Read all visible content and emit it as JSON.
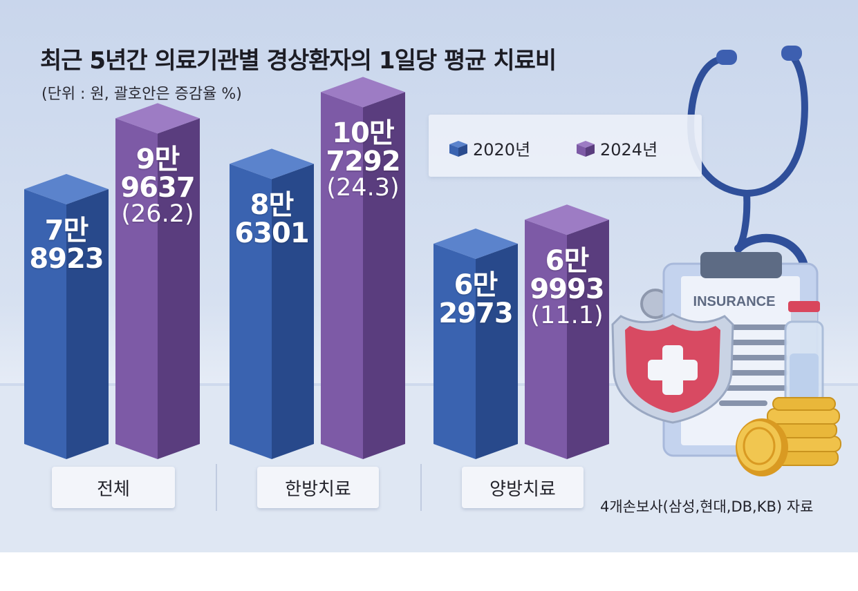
{
  "colors": {
    "series_2020": "#3a63b0",
    "series_2024": "#7d5aa6"
  },
  "chart_data": {
    "type": "bar",
    "title": "최근 5년간 의료기관별 경상환자의 1일당 평균 치료비",
    "subtitle": "(단위 : 원, 괄호안은 증감율 %)",
    "categories": [
      "전체",
      "한방치료",
      "양방치료"
    ],
    "series": [
      {
        "name": "2020년",
        "values": [
          78923,
          86301,
          62973
        ],
        "labels": [
          {
            "top": "7만",
            "main": "8923",
            "pct": ""
          },
          {
            "top": "8만",
            "main": "6301",
            "pct": ""
          },
          {
            "top": "6만",
            "main": "2973",
            "pct": ""
          }
        ]
      },
      {
        "name": "2024년",
        "values": [
          99637,
          107292,
          69993
        ],
        "labels": [
          {
            "top": "9만",
            "main": "9637",
            "pct": "(26.2)"
          },
          {
            "top": "10만",
            "main": "7292",
            "pct": "(24.3)"
          },
          {
            "top": "6만",
            "main": "9993",
            "pct": "(11.1)"
          }
        ]
      }
    ],
    "ylim": [
      0,
      110000
    ],
    "legend_position": "top-right",
    "source": "4개손보사(삼성,현대,DB,KB) 자료"
  },
  "illustration": {
    "clipboard_text": "INSURANCE"
  }
}
